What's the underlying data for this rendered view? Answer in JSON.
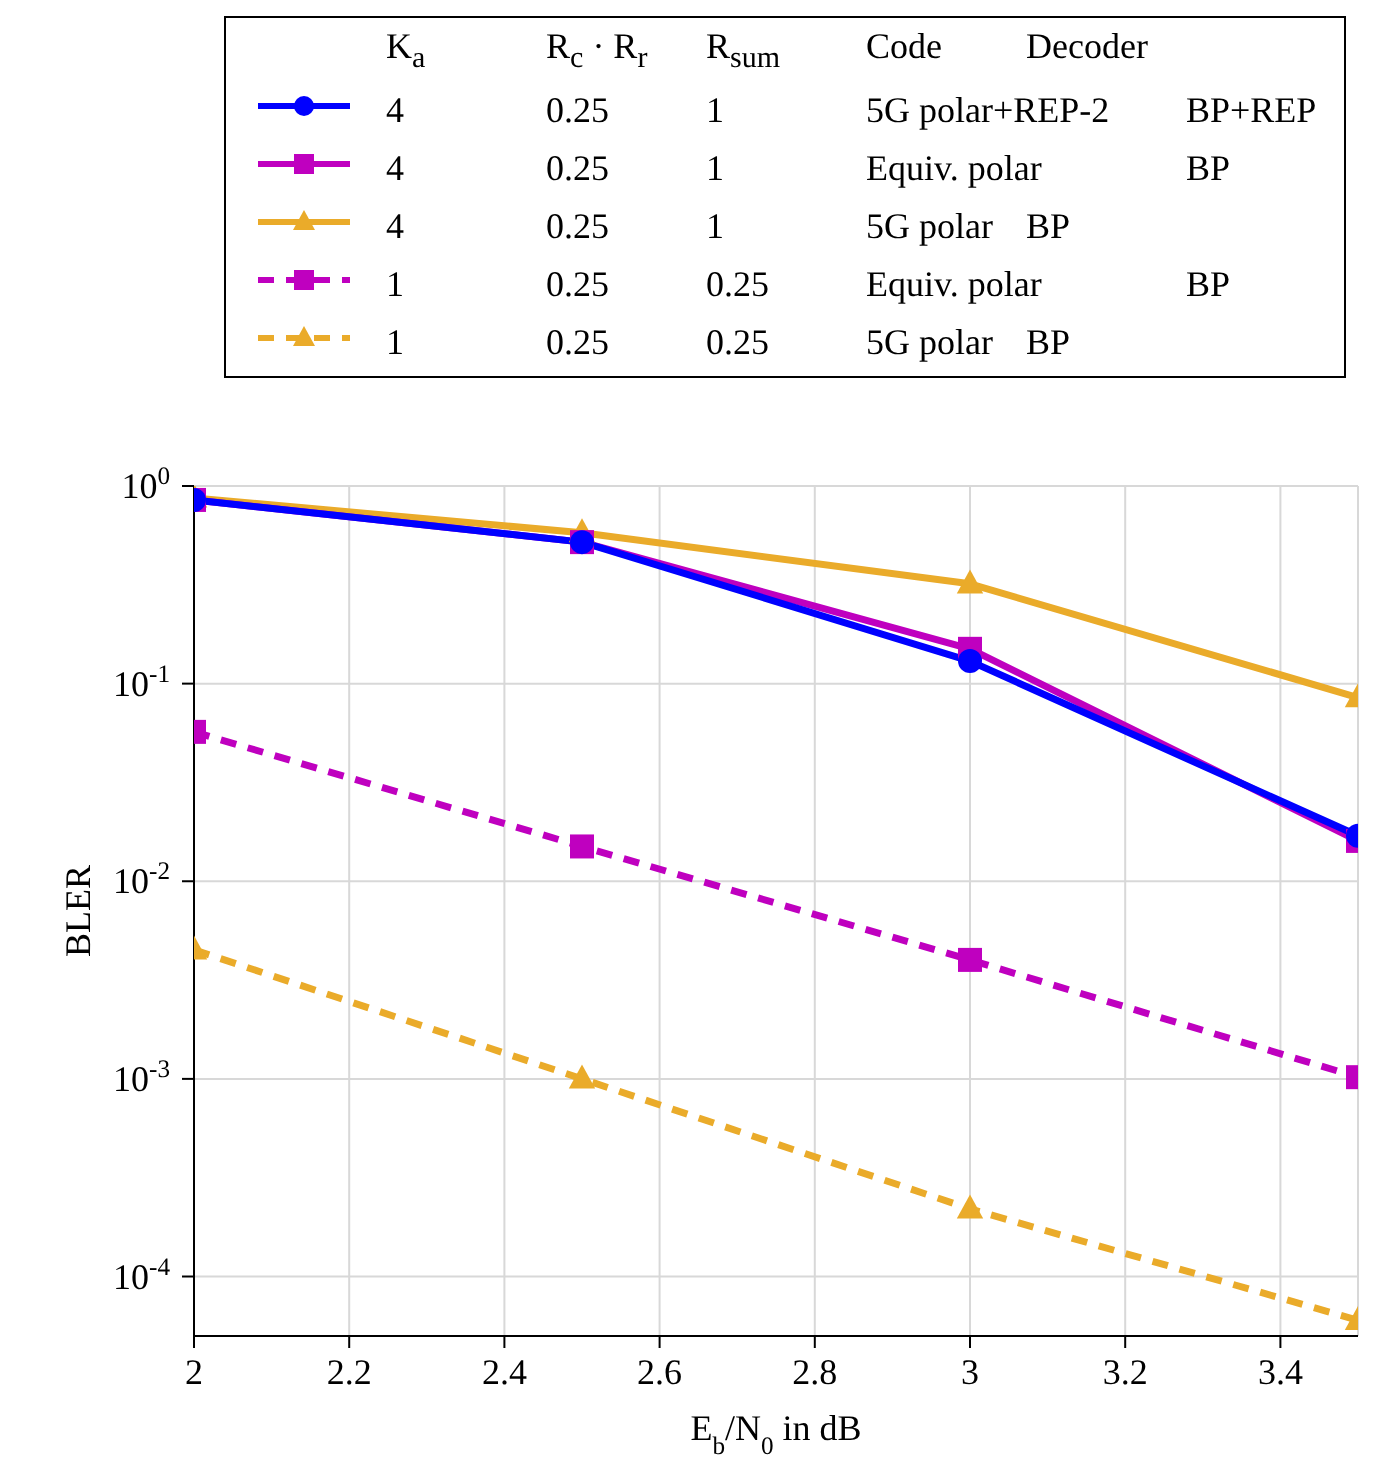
{
  "chart_data": {
    "type": "line",
    "xlabel": "E$_{b}$/N$_{0}$ in dB",
    "ylabel": "BLER",
    "legend_title": "K$_{a}$\tR$_{c}$ · R$_{r}$\tR$_{sum}$\tCode\tDecoder",
    "x": [
      2,
      2.5,
      3,
      3.5
    ],
    "series": [
      {
        "name": "4\t0.25\t1\t5G polar+REP-2\tBP+REP",
        "color": "#0000ff",
        "marker": "circle",
        "line_style": "solid",
        "values": [
          0.85,
          0.52,
          0.13,
          0.017
        ]
      },
      {
        "name": "4\t0.25\t1\tEquiv. polar\tBP",
        "color": "#bf00bf",
        "marker": "square",
        "line_style": "solid",
        "values": [
          0.85,
          0.52,
          0.15,
          0.016
        ]
      },
      {
        "name": "4\t0.25\t1\t5G polar\tBP",
        "color": "#eaab2a",
        "marker": "triangle",
        "line_style": "solid",
        "values": [
          0.87,
          0.58,
          0.32,
          0.085
        ]
      },
      {
        "name": "1\t0.25\t0.25\tEquiv. polar\tBP",
        "color": "#bf00bf",
        "marker": "square",
        "line_style": "dashed",
        "values": [
          0.057,
          0.015,
          0.004,
          0.00102
        ]
      },
      {
        "name": "1\t0.25\t0.25\t5G polar\tBP",
        "color": "#eaab2a",
        "marker": "triangle",
        "line_style": "dashed",
        "values": [
          0.0045,
          0.001,
          0.00022,
          6e-05
        ]
      }
    ],
    "xlim": [
      2,
      3.5
    ],
    "xticks": [
      2,
      2.2,
      2.4,
      2.6,
      2.8,
      3,
      3.2,
      3.4
    ],
    "ylim": [
      5e-05,
      1
    ],
    "yticks": [
      {
        "value": 0.0001,
        "label": "10$^{-4}$"
      },
      {
        "value": 0.001,
        "label": "10$^{-3}$"
      },
      {
        "value": 0.01,
        "label": "10$^{-2}$"
      },
      {
        "value": 0.1,
        "label": "10$^{-1}$"
      },
      {
        "value": 1,
        "label": "10$^{0}$"
      }
    ],
    "log": "y",
    "grid": true,
    "legend": "top"
  }
}
